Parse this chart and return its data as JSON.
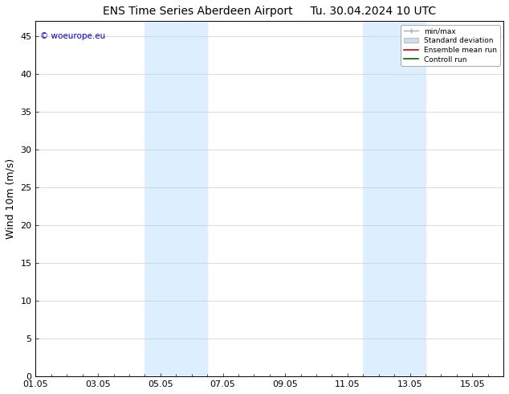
{
  "title_left": "ENS Time Series Aberdeen Airport",
  "title_right": "Tu. 30.04.2024 10 UTC",
  "ylabel": "Wind 10m (m/s)",
  "ylim": [
    0,
    47
  ],
  "yticks": [
    0,
    5,
    10,
    15,
    20,
    25,
    30,
    35,
    40,
    45
  ],
  "xtick_labels": [
    "01.05",
    "03.05",
    "05.05",
    "07.05",
    "09.05",
    "11.05",
    "13.05",
    "15.05"
  ],
  "xtick_positions": [
    0,
    2,
    4,
    6,
    8,
    10,
    12,
    14
  ],
  "xlim": [
    0,
    15
  ],
  "shade_bands": [
    {
      "x_start": 3.5,
      "x_end": 5.5
    },
    {
      "x_start": 10.5,
      "x_end": 12.5
    }
  ],
  "shade_color": "#ddeeff",
  "background_color": "#ffffff",
  "watermark_text": "© woeurope.eu",
  "watermark_color": "#0000cc",
  "grid_color": "#cccccc",
  "axis_fontsize": 8,
  "title_fontsize": 10,
  "ylabel_fontsize": 9
}
